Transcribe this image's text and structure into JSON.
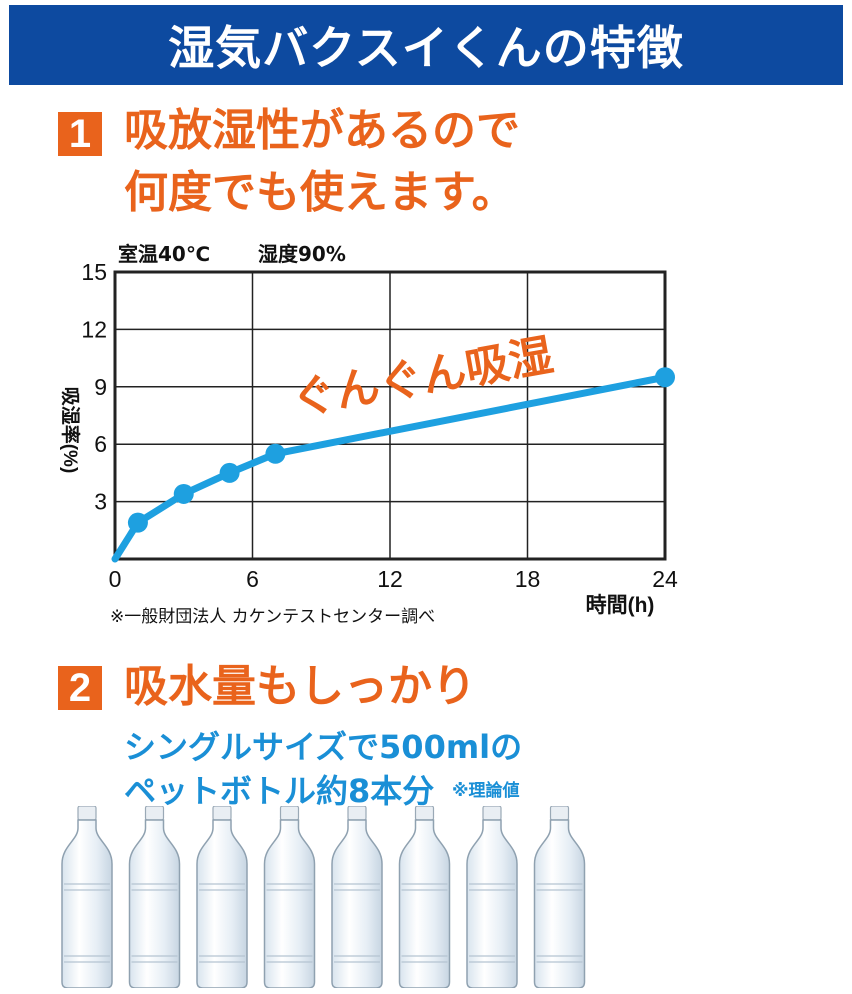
{
  "banner": {
    "title": "湿気バクスイくんの特徴"
  },
  "section1": {
    "number": "1",
    "heading_line1": "吸放湿性があるので",
    "heading_line2": "何度でも使えます。"
  },
  "section2": {
    "number": "2",
    "heading": "吸水量もしっかり",
    "sub_line1": "シングルサイズで500mlの",
    "sub_line2": "ペットボトル約8本分",
    "note": "※理論値",
    "bottle_count": 8
  },
  "chart_data": {
    "type": "line",
    "conditions": [
      "室温40℃",
      "湿度90%"
    ],
    "annotation": "ぐんぐん吸湿",
    "xlabel": "時間(h)",
    "ylabel": "吸湿率(%)",
    "x_ticks": [
      "0",
      "6",
      "12",
      "18",
      "24"
    ],
    "y_ticks": [
      "3",
      "6",
      "9",
      "12",
      "15"
    ],
    "xlim": [
      0,
      24
    ],
    "ylim": [
      0,
      15
    ],
    "grid": true,
    "series": [
      {
        "color": "#1ea0e0",
        "x": [
          0,
          1,
          3,
          5,
          7,
          24
        ],
        "y": [
          0,
          1.9,
          3.4,
          4.5,
          5.5,
          9.5
        ],
        "markers_at": [
          1,
          3,
          5,
          7,
          24
        ]
      }
    ],
    "source": "※一般財団法人 カケンテストセンター調べ"
  },
  "colors": {
    "banner": "#0d4aa0",
    "accent_orange": "#e9631c",
    "accent_blue": "#1a8fd6",
    "line": "#1ea0e0"
  }
}
